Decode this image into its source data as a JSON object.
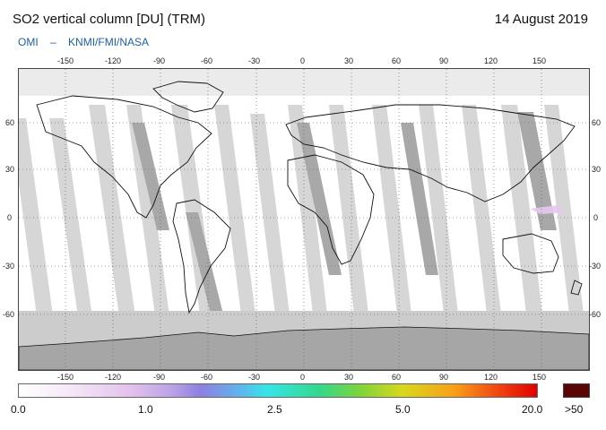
{
  "header": {
    "title": "SO2 vertical column [DU] (TRM)",
    "date": "14 August 2019"
  },
  "credit": {
    "parts": [
      "OMI",
      "–",
      "KNMI/FMI/NASA"
    ]
  },
  "map": {
    "lon_ticks": [
      "-150",
      "-120",
      "-90",
      "-60",
      "-30",
      "0",
      "30",
      "60",
      "90",
      "120",
      "150"
    ],
    "lat_ticks": [
      "60",
      "30",
      "0",
      "-30",
      "-60"
    ],
    "colors": {
      "ocean": "#ffffff",
      "swath_gap": "#d6d6d6",
      "night_gap": "#a6a6a6",
      "polar_cap": "#cfcfcf"
    }
  },
  "colorbar": {
    "labels": [
      "0.0",
      "1.0",
      "2.5",
      "5.0",
      "20.0"
    ],
    "over_label": ">50",
    "over_color": "#5a0606"
  }
}
